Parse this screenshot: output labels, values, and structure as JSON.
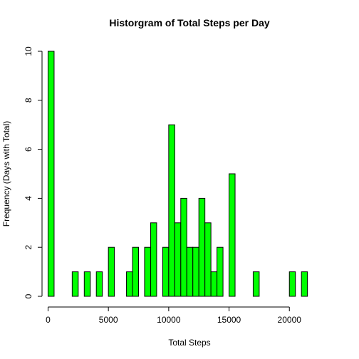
{
  "chart_data": {
    "type": "bar",
    "title": "Historgram of Total Steps per Day",
    "xlabel": "Total Steps",
    "ylabel": "Frequency (Days with Total)",
    "bin_width": 500,
    "bins": [
      {
        "x": 0,
        "count": 10
      },
      {
        "x": 2000,
        "count": 1
      },
      {
        "x": 3000,
        "count": 1
      },
      {
        "x": 4000,
        "count": 1
      },
      {
        "x": 5000,
        "count": 2
      },
      {
        "x": 6500,
        "count": 1
      },
      {
        "x": 7000,
        "count": 2
      },
      {
        "x": 8000,
        "count": 2
      },
      {
        "x": 8500,
        "count": 3
      },
      {
        "x": 9500,
        "count": 2
      },
      {
        "x": 10000,
        "count": 7
      },
      {
        "x": 10500,
        "count": 3
      },
      {
        "x": 11000,
        "count": 4
      },
      {
        "x": 11500,
        "count": 2
      },
      {
        "x": 12000,
        "count": 2
      },
      {
        "x": 12500,
        "count": 4
      },
      {
        "x": 13000,
        "count": 3
      },
      {
        "x": 13500,
        "count": 1
      },
      {
        "x": 14000,
        "count": 2
      },
      {
        "x": 15000,
        "count": 5
      },
      {
        "x": 17000,
        "count": 1
      },
      {
        "x": 20000,
        "count": 1
      },
      {
        "x": 21000,
        "count": 1
      }
    ],
    "xlim": [
      -500,
      24000
    ],
    "ylim": [
      0,
      10
    ],
    "xticks": [
      0,
      5000,
      10000,
      15000,
      20000
    ],
    "yticks": [
      0,
      2,
      4,
      6,
      8,
      10
    ],
    "bar_color": "#00ff00",
    "grid": false,
    "legend": "none"
  }
}
